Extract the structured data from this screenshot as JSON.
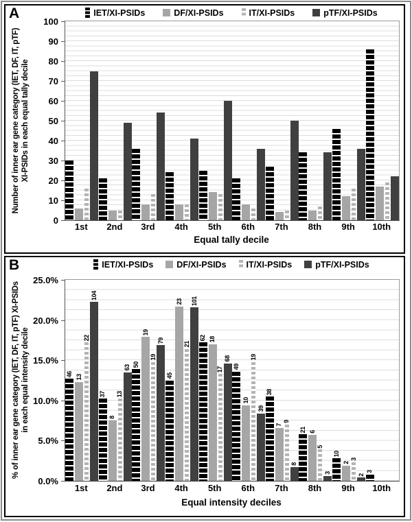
{
  "figure_type": "two-panel bar chart figure",
  "panels": {
    "a": {
      "label": "A",
      "ylabel_line1": "Number of inner ear gene category (IET, DF, IT, pTF)",
      "ylabel_line2": "XI-PSIDs in each equal tally decile",
      "xlabel": "Equal tally decile"
    },
    "b": {
      "label": "B",
      "ylabel_line1": "% of inner ear gene category (IET, DF, IT, pTF) XI-PSIDs",
      "ylabel_line2": "in each equal intensity decile",
      "xlabel": "Equal intensity deciles"
    }
  },
  "colors": {
    "iet": "#000000",
    "df": "#a6a6a6",
    "it": "#b4b4b4",
    "ptf": "#404040",
    "gridline": "#dcdcdc",
    "panel_border": "#000000",
    "outer_border": "#8a8a8a"
  },
  "chart_data": [
    {
      "panel": "A",
      "type": "bar",
      "categories": [
        "1st",
        "2nd",
        "3rd",
        "4th",
        "5th",
        "6th",
        "7th",
        "8th",
        "9th",
        "10th"
      ],
      "series": [
        {
          "name": "IET/XI-PSIDs",
          "values": [
            30,
            21,
            36,
            24,
            25,
            21,
            27,
            34,
            46,
            86
          ]
        },
        {
          "name": "DF/XI-PSIDs",
          "values": [
            6,
            5,
            8,
            8,
            14,
            8,
            4,
            5,
            12,
            17
          ]
        },
        {
          "name": "IT/XI-PSIDs",
          "values": [
            16,
            5,
            13,
            8,
            13,
            6,
            5,
            7,
            16,
            19
          ]
        },
        {
          "name": "pTF/XI-PSIDs",
          "values": [
            75,
            49,
            54,
            41,
            60,
            36,
            50,
            34,
            36,
            22
          ]
        }
      ],
      "xlabel": "Equal tally decile",
      "ylabel": "Number of inner ear gene category (IET, DF, IT, pTF) XI-PSIDs in each equal tally decile",
      "ylim": [
        0,
        100
      ],
      "yticks": [
        0,
        10,
        20,
        30,
        40,
        50,
        60,
        70,
        80,
        90,
        100
      ],
      "ytick_labels": [
        "0",
        "10",
        "20",
        "30",
        "40",
        "50",
        "60",
        "70",
        "80",
        "90",
        "100"
      ],
      "grid": "horizontal minor every 2.5",
      "legend_position": "top",
      "data_labels": false
    },
    {
      "panel": "B",
      "type": "bar",
      "categories": [
        "1st",
        "2nd",
        "3rd",
        "4th",
        "5th",
        "6th",
        "7th",
        "8th",
        "9th",
        "10th"
      ],
      "series": [
        {
          "name": "IET/XI-PSIDs",
          "counts": [
            46,
            37,
            50,
            45,
            62,
            49,
            38,
            21,
            10,
            3
          ],
          "percent": [
            12.7,
            10.2,
            13.9,
            12.5,
            17.2,
            13.6,
            10.5,
            5.8,
            2.8,
            0.8
          ]
        },
        {
          "name": "DF/XI-PSIDs",
          "counts": [
            13,
            8,
            19,
            23,
            18,
            10,
            7,
            6,
            2,
            0
          ],
          "percent": [
            12.3,
            7.5,
            17.9,
            21.7,
            17.0,
            9.4,
            6.6,
            5.7,
            1.9,
            0
          ]
        },
        {
          "name": "IT/XI-PSIDs",
          "counts": [
            22,
            13,
            19,
            21,
            17,
            19,
            9,
            5,
            3,
            0
          ],
          "percent": [
            17.2,
            10.2,
            14.8,
            16.4,
            13.3,
            14.8,
            7.0,
            3.9,
            2.3,
            0
          ]
        },
        {
          "name": "pTF/XI-PSIDs",
          "counts": [
            104,
            63,
            79,
            101,
            68,
            39,
            8,
            3,
            2,
            0
          ],
          "percent": [
            22.3,
            13.5,
            16.9,
            21.6,
            14.6,
            8.4,
            1.7,
            0.6,
            0.4,
            0
          ]
        }
      ],
      "xlabel": "Equal intensity deciles",
      "ylabel": "% of inner ear gene category (IET, DF, IT, pTF) XI-PSIDs in each equal intensity decile",
      "ylim": [
        0,
        25
      ],
      "yticks": [
        0,
        5,
        10,
        15,
        20,
        25
      ],
      "ytick_labels": [
        "0.0%",
        "5.0%",
        "10.0%",
        "15.0%",
        "20.0%",
        "25.0%"
      ],
      "grid": "horizontal minor every 1.25",
      "legend_position": "top",
      "data_labels": true,
      "data_label_note": "rotated 90deg count labels above each bar"
    }
  ]
}
